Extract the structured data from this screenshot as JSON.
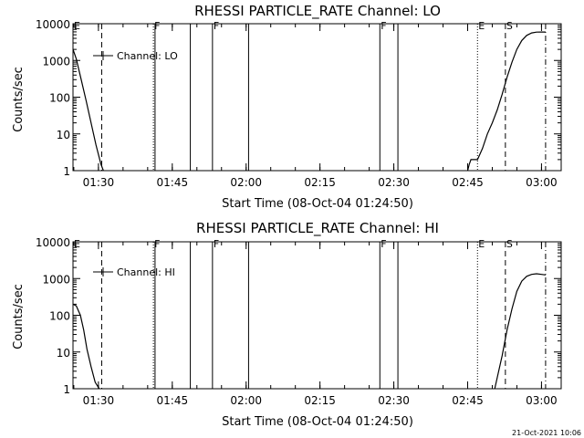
{
  "chart_data": [
    {
      "type": "line",
      "title": "RHESSI PARTICLE_RATE Channel: LO",
      "xlabel": "Start Time (08-Oct-04 01:24:50)",
      "ylabel": "Counts/sec",
      "yscale": "log",
      "ylim": [
        1,
        10000
      ],
      "xlim": [
        "01:24:50",
        "03:04:00"
      ],
      "x_ticks": [
        "01:30",
        "01:45",
        "02:00",
        "02:15",
        "02:30",
        "02:45",
        "03:00"
      ],
      "y_ticks": [
        "1",
        "10",
        "100",
        "1000",
        "10000"
      ],
      "grid": false,
      "legend": {
        "position": "top-left",
        "entries": [
          "Channel: LO"
        ]
      },
      "series": [
        {
          "name": "Channel: LO",
          "segments": [
            {
              "x": [
                "01:24:50",
                "01:25:30",
                "01:26:30",
                "01:27:30",
                "01:28:30",
                "01:29:30",
                "01:30:30",
                "01:31:00"
              ],
              "y": [
                2000,
                1100,
                300,
                80,
                20,
                5,
                1.5,
                1
              ]
            },
            {
              "x": [
                "02:45:00",
                "02:45:20",
                "02:45:40",
                "02:47:00",
                "02:48:00",
                "02:49:00",
                "02:50:00",
                "02:51:00",
                "02:52:00",
                "02:53:00",
                "02:54:00",
                "02:55:00",
                "02:56:00",
                "02:57:00",
                "02:58:00",
                "02:59:00",
                "03:00:00",
                "03:00:50"
              ],
              "y": [
                1,
                1.5,
                2,
                2,
                4,
                10,
                20,
                45,
                120,
                350,
                900,
                2000,
                3500,
                4800,
                5600,
                5900,
                5950,
                5950
              ]
            }
          ]
        }
      ],
      "markers": [
        {
          "x": "01:24:50",
          "label": "E",
          "style": "dotted"
        },
        {
          "x": "01:30:40",
          "label": "",
          "style": "dashed"
        },
        {
          "x": "01:41:10",
          "label": "F",
          "style": "dotted"
        },
        {
          "x": "01:41:30",
          "label": "",
          "style": "solid"
        },
        {
          "x": "01:48:40",
          "label": "",
          "style": "solid"
        },
        {
          "x": "01:53:10",
          "label": "F",
          "style": "solid"
        },
        {
          "x": "02:00:30",
          "label": "",
          "style": "solid"
        },
        {
          "x": "02:27:10",
          "label": "F",
          "style": "solid"
        },
        {
          "x": "02:30:50",
          "label": "",
          "style": "solid"
        },
        {
          "x": "02:47:00",
          "label": "E",
          "style": "dotted"
        },
        {
          "x": "02:52:40",
          "label": "S",
          "style": "dashed"
        },
        {
          "x": "03:00:50",
          "label": "",
          "style": "dashdot"
        }
      ]
    },
    {
      "type": "line",
      "title": "RHESSI PARTICLE_RATE Channel: HI",
      "xlabel": "Start Time (08-Oct-04 01:24:50)",
      "ylabel": "Counts/sec",
      "yscale": "log",
      "ylim": [
        1,
        10000
      ],
      "xlim": [
        "01:24:50",
        "03:04:00"
      ],
      "x_ticks": [
        "01:30",
        "01:45",
        "02:00",
        "02:15",
        "02:30",
        "02:45",
        "03:00"
      ],
      "y_ticks": [
        "1",
        "10",
        "100",
        "1000",
        "10000"
      ],
      "grid": false,
      "legend": {
        "position": "top-left",
        "entries": [
          "Channel: HI"
        ]
      },
      "series": [
        {
          "name": "Channel: HI",
          "segments": [
            {
              "x": [
                "01:24:50",
                "01:25:30",
                "01:26:20",
                "01:27:00",
                "01:27:40",
                "01:28:30",
                "01:29:20",
                "01:30:10"
              ],
              "y": [
                200,
                180,
                100,
                40,
                12,
                4,
                1.5,
                1
              ]
            },
            {
              "x": [
                "02:50:30",
                "02:51:00",
                "02:52:00",
                "02:53:00",
                "02:54:00",
                "02:55:00",
                "02:56:00",
                "02:57:00",
                "02:58:00",
                "02:59:00",
                "03:00:00",
                "03:00:50"
              ],
              "y": [
                1,
                2,
                8,
                40,
                150,
                450,
                850,
                1150,
                1300,
                1350,
                1300,
                1250
              ]
            }
          ]
        }
      ],
      "markers": [
        {
          "x": "01:24:50",
          "label": "E",
          "style": "dotted"
        },
        {
          "x": "01:30:40",
          "label": "",
          "style": "dashed"
        },
        {
          "x": "01:41:10",
          "label": "F",
          "style": "dotted"
        },
        {
          "x": "01:41:30",
          "label": "",
          "style": "solid"
        },
        {
          "x": "01:48:40",
          "label": "",
          "style": "solid"
        },
        {
          "x": "01:53:10",
          "label": "F",
          "style": "solid"
        },
        {
          "x": "02:00:30",
          "label": "",
          "style": "solid"
        },
        {
          "x": "02:27:10",
          "label": "F",
          "style": "solid"
        },
        {
          "x": "02:30:50",
          "label": "",
          "style": "solid"
        },
        {
          "x": "02:47:00",
          "label": "E",
          "style": "dotted"
        },
        {
          "x": "02:52:40",
          "label": "S",
          "style": "dashed"
        },
        {
          "x": "03:00:50",
          "label": "",
          "style": "dashdot"
        }
      ]
    }
  ],
  "date_stamp": "21-Oct-2021 10:06"
}
